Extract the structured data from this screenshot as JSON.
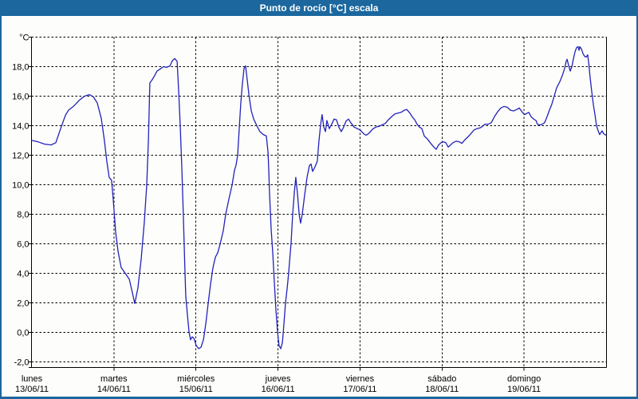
{
  "window": {
    "title": "Punto de rocío [°C] escala"
  },
  "colors": {
    "titlebar_bg": "#1b679e",
    "frame_border": "#1b679e",
    "series_line": "#2222bb",
    "grid": "#000000",
    "plot_bg": "#fdfdfb"
  },
  "chart_data": {
    "type": "line",
    "title": "Punto de rocío [°C] escala",
    "unit_label": "°C",
    "ylabel": "°C",
    "ylim": [
      -2,
      20
    ],
    "ytick_step": 2,
    "ytick_labels": [
      "-2,0",
      "0,0",
      "2,0",
      "4,0",
      "6,0",
      "8,0",
      "10,0",
      "12,0",
      "14,0",
      "16,0",
      "18,0"
    ],
    "grid": "dashed",
    "legend": "none",
    "x_unit": "hours since 13/06/11 00:00",
    "xlim_hours": [
      0,
      168
    ],
    "xgrid_hours": [
      24,
      48,
      72,
      96,
      120,
      144
    ],
    "day_label_hours": [
      0,
      24,
      48,
      72,
      96,
      120,
      144
    ],
    "days": [
      {
        "name": "lunes",
        "date": "13/06/11"
      },
      {
        "name": "martes",
        "date": "14/06/11"
      },
      {
        "name": "miércoles",
        "date": "15/06/11"
      },
      {
        "name": "jueves",
        "date": "16/06/11"
      },
      {
        "name": "viernes",
        "date": "17/06/11"
      },
      {
        "name": "sábado",
        "date": "18/06/11"
      },
      {
        "name": "domingo",
        "date": "19/06/11"
      }
    ],
    "series": [
      {
        "name": "Punto de rocío",
        "color": "#2222bb",
        "points": [
          [
            0,
            13.0
          ],
          [
            1.9,
            12.9
          ],
          [
            3.7,
            12.75
          ],
          [
            5.6,
            12.7
          ],
          [
            7,
            12.85
          ],
          [
            8.4,
            13.8
          ],
          [
            9.8,
            14.7
          ],
          [
            10.7,
            15.05
          ],
          [
            12.1,
            15.3
          ],
          [
            14,
            15.75
          ],
          [
            15.4,
            16
          ],
          [
            16.8,
            16.1
          ],
          [
            18,
            15.95
          ],
          [
            19.1,
            15.55
          ],
          [
            20.3,
            14.5
          ],
          [
            21.2,
            13
          ],
          [
            21.9,
            11.6
          ],
          [
            22.6,
            10.5
          ],
          [
            23.3,
            10.3
          ],
          [
            23.8,
            9
          ],
          [
            24.5,
            6.8
          ],
          [
            25.2,
            5.5
          ],
          [
            26.1,
            4.4
          ],
          [
            27.3,
            4
          ],
          [
            28.5,
            3.6
          ],
          [
            29.2,
            2.9
          ],
          [
            30.1,
            1.95
          ],
          [
            31,
            3
          ],
          [
            32,
            5
          ],
          [
            32.9,
            7.5
          ],
          [
            33.6,
            10
          ],
          [
            34.1,
            13
          ],
          [
            34.5,
            16.9
          ],
          [
            35,
            17.05
          ],
          [
            35.7,
            17.3
          ],
          [
            36.6,
            17.7
          ],
          [
            37.6,
            17.85
          ],
          [
            38.5,
            18
          ],
          [
            39.4,
            17.95
          ],
          [
            40.4,
            18.05
          ],
          [
            41.1,
            18.4
          ],
          [
            41.8,
            18.55
          ],
          [
            42.5,
            18.35
          ],
          [
            42.9,
            16.5
          ],
          [
            43.4,
            14
          ],
          [
            43.9,
            11
          ],
          [
            44.3,
            7.9
          ],
          [
            44.8,
            4
          ],
          [
            45,
            2.5
          ],
          [
            45.5,
            1.2
          ],
          [
            46,
            0
          ],
          [
            46.4,
            -0.5
          ],
          [
            46.9,
            -0.3
          ],
          [
            47.4,
            -0.4
          ],
          [
            48.1,
            -0.9
          ],
          [
            48.8,
            -1.1
          ],
          [
            49.5,
            -1
          ],
          [
            50.2,
            -0.5
          ],
          [
            50.9,
            0.6
          ],
          [
            51.6,
            2
          ],
          [
            52.3,
            3.3
          ],
          [
            53,
            4.4
          ],
          [
            53.7,
            5.1
          ],
          [
            54.4,
            5.4
          ],
          [
            55.1,
            6
          ],
          [
            56,
            6.9
          ],
          [
            56.7,
            8
          ],
          [
            57.6,
            9
          ],
          [
            58.6,
            10
          ],
          [
            59.3,
            11
          ],
          [
            59.7,
            11.3
          ],
          [
            60.2,
            12
          ],
          [
            60.7,
            13.9
          ],
          [
            61.1,
            15.5
          ],
          [
            61.6,
            16.9
          ],
          [
            62.1,
            17.9
          ],
          [
            62.5,
            18.05
          ],
          [
            63,
            17.1
          ],
          [
            63.5,
            16.1
          ],
          [
            64.2,
            15
          ],
          [
            64.9,
            14.45
          ],
          [
            65.8,
            14
          ],
          [
            66.7,
            13.6
          ],
          [
            67.7,
            13.4
          ],
          [
            68.6,
            13.3
          ],
          [
            69.1,
            12.2
          ],
          [
            69.3,
            11
          ],
          [
            69.5,
            9.5
          ],
          [
            70,
            7
          ],
          [
            70.5,
            5.3
          ],
          [
            70.9,
            3.5
          ],
          [
            71.4,
            1.5
          ],
          [
            71.9,
            0
          ],
          [
            72.3,
            -0.9
          ],
          [
            72.8,
            -1.1
          ],
          [
            73.3,
            -0.7
          ],
          [
            73.7,
            0.5
          ],
          [
            74.2,
            2
          ],
          [
            74.7,
            3
          ],
          [
            75.1,
            4
          ],
          [
            75.8,
            6
          ],
          [
            76.3,
            8
          ],
          [
            76.8,
            9.5
          ],
          [
            77.2,
            10.5
          ],
          [
            77.7,
            9.4
          ],
          [
            78.2,
            8
          ],
          [
            78.6,
            7.4
          ],
          [
            79.1,
            8
          ],
          [
            79.8,
            9.3
          ],
          [
            80.5,
            10.5
          ],
          [
            81.2,
            11.3
          ],
          [
            81.7,
            11.4
          ],
          [
            82.1,
            10.9
          ],
          [
            82.8,
            11.2
          ],
          [
            83.5,
            11.6
          ],
          [
            84,
            13
          ],
          [
            84.5,
            14.1
          ],
          [
            84.9,
            14.75
          ],
          [
            85.4,
            13.9
          ],
          [
            85.9,
            13.6
          ],
          [
            86.3,
            14.35
          ],
          [
            87,
            13.8
          ],
          [
            87.7,
            14.1
          ],
          [
            88.4,
            14.45
          ],
          [
            89.1,
            14.4
          ],
          [
            89.8,
            13.9
          ],
          [
            90.5,
            13.6
          ],
          [
            91.2,
            13.9
          ],
          [
            91.9,
            14.3
          ],
          [
            92.6,
            14.45
          ],
          [
            93.3,
            14.2
          ],
          [
            94.3,
            13.9
          ],
          [
            95.2,
            13.8
          ],
          [
            96.1,
            13.7
          ],
          [
            97.1,
            13.45
          ],
          [
            97.8,
            13.35
          ],
          [
            98.7,
            13.5
          ],
          [
            99.6,
            13.75
          ],
          [
            100.6,
            13.9
          ],
          [
            101.5,
            13.95
          ],
          [
            102.4,
            14.05
          ],
          [
            103.4,
            14.15
          ],
          [
            104.3,
            14.4
          ],
          [
            105.2,
            14.6
          ],
          [
            106.2,
            14.8
          ],
          [
            107.1,
            14.85
          ],
          [
            108,
            14.9
          ],
          [
            109,
            15.05
          ],
          [
            109.7,
            15.1
          ],
          [
            110.6,
            14.85
          ],
          [
            111.3,
            14.6
          ],
          [
            112,
            14.4
          ],
          [
            112.7,
            14.1
          ],
          [
            113.4,
            13.9
          ],
          [
            114.1,
            13.8
          ],
          [
            114.8,
            13.3
          ],
          [
            115.7,
            13.1
          ],
          [
            116.7,
            12.8
          ],
          [
            117.6,
            12.55
          ],
          [
            118.3,
            12.4
          ],
          [
            119,
            12.7
          ],
          [
            119.7,
            12.85
          ],
          [
            120.4,
            12.9
          ],
          [
            121.1,
            12.85
          ],
          [
            121.8,
            12.55
          ],
          [
            122.5,
            12.7
          ],
          [
            123.2,
            12.85
          ],
          [
            124.1,
            12.95
          ],
          [
            125.1,
            12.9
          ],
          [
            125.8,
            12.8
          ],
          [
            126.7,
            13.05
          ],
          [
            127.6,
            13.25
          ],
          [
            128.6,
            13.5
          ],
          [
            129.3,
            13.7
          ],
          [
            130.2,
            13.8
          ],
          [
            131.1,
            13.85
          ],
          [
            131.8,
            13.95
          ],
          [
            132.5,
            14.1
          ],
          [
            133.5,
            14.1
          ],
          [
            134.4,
            14.2
          ],
          [
            135.3,
            14.6
          ],
          [
            136.3,
            14.95
          ],
          [
            137.2,
            15.2
          ],
          [
            138.1,
            15.3
          ],
          [
            139.1,
            15.25
          ],
          [
            140,
            15.05
          ],
          [
            140.9,
            15
          ],
          [
            141.9,
            15.1
          ],
          [
            142.6,
            15.2
          ],
          [
            143.5,
            14.9
          ],
          [
            144.2,
            14.75
          ],
          [
            144.9,
            14.85
          ],
          [
            145.4,
            14.9
          ],
          [
            146.1,
            14.6
          ],
          [
            146.8,
            14.45
          ],
          [
            147.5,
            14.35
          ],
          [
            147.9,
            14.1
          ],
          [
            148.6,
            14.05
          ],
          [
            149.3,
            14.1
          ],
          [
            150,
            14.2
          ],
          [
            150.7,
            14.6
          ],
          [
            151.4,
            15.05
          ],
          [
            152.1,
            15.45
          ],
          [
            152.8,
            16
          ],
          [
            153.5,
            16.55
          ],
          [
            154.5,
            17
          ],
          [
            155.2,
            17.4
          ],
          [
            155.9,
            17.9
          ],
          [
            156.3,
            18.35
          ],
          [
            156.6,
            18.5
          ],
          [
            157,
            18.1
          ],
          [
            157.5,
            17.7
          ],
          [
            158,
            18
          ],
          [
            158.4,
            18.5
          ],
          [
            158.9,
            19
          ],
          [
            159.4,
            19.3
          ],
          [
            159.8,
            19.35
          ],
          [
            160.1,
            19.1
          ],
          [
            160.3,
            19.35
          ],
          [
            160.8,
            19.2
          ],
          [
            161.2,
            18.9
          ],
          [
            161.7,
            18.7
          ],
          [
            162.2,
            18.65
          ],
          [
            162.6,
            18.8
          ],
          [
            162.9,
            18.3
          ],
          [
            163.3,
            17.3
          ],
          [
            163.8,
            16.3
          ],
          [
            164.3,
            15.4
          ],
          [
            164.7,
            14.8
          ],
          [
            165.2,
            14
          ],
          [
            165.7,
            13.65
          ],
          [
            166.1,
            13.4
          ],
          [
            166.8,
            13.65
          ],
          [
            167.3,
            13.45
          ],
          [
            168,
            13.35
          ]
        ]
      }
    ]
  }
}
